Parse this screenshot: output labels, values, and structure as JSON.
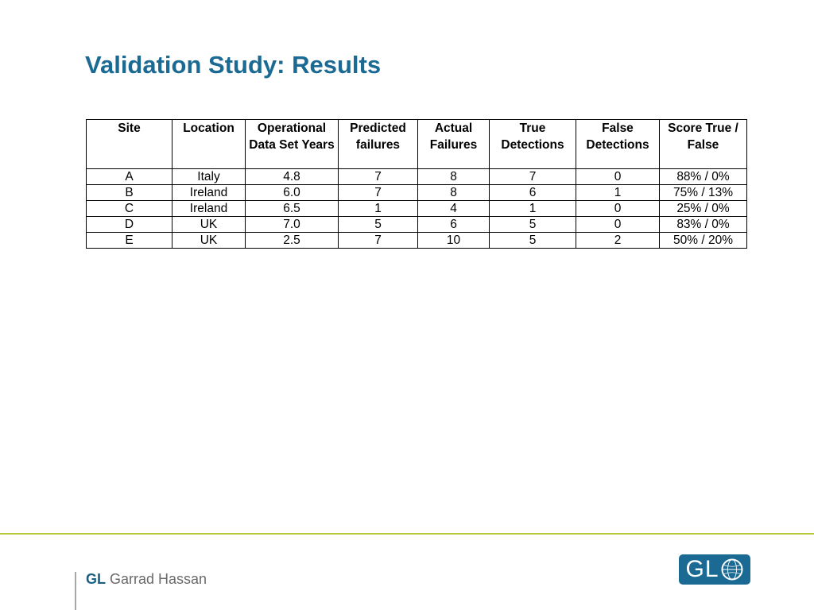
{
  "slide": {
    "title": "Validation Study: Results"
  },
  "table": {
    "headers": [
      "Site",
      "Location",
      "Operational Data Set Years",
      "Predicted failures",
      "Actual Failures",
      "True Detections",
      "False Detections",
      "Score True / False"
    ],
    "rows": [
      [
        "A",
        "Italy",
        "4.8",
        "7",
        "8",
        "7",
        "0",
        "88% / 0%"
      ],
      [
        "B",
        "Ireland",
        "6.0",
        "7",
        "8",
        "6",
        "1",
        "75% / 13%"
      ],
      [
        "C",
        "Ireland",
        "6.5",
        "1",
        "4",
        "1",
        "0",
        "25% / 0%"
      ],
      [
        "D",
        "UK",
        "7.0",
        "5",
        "6",
        "5",
        "0",
        "83% / 0%"
      ],
      [
        "E",
        "UK",
        "2.5",
        "7",
        "10",
        "5",
        "2",
        "50% / 20%"
      ]
    ]
  },
  "footer": {
    "brand_prefix": "GL",
    "brand_name": "Garrad Hassan",
    "logo_letters": "GL",
    "logo_icon": "globe-icon",
    "accent_color": "#b9c935",
    "brand_color": "#1b6a93"
  }
}
